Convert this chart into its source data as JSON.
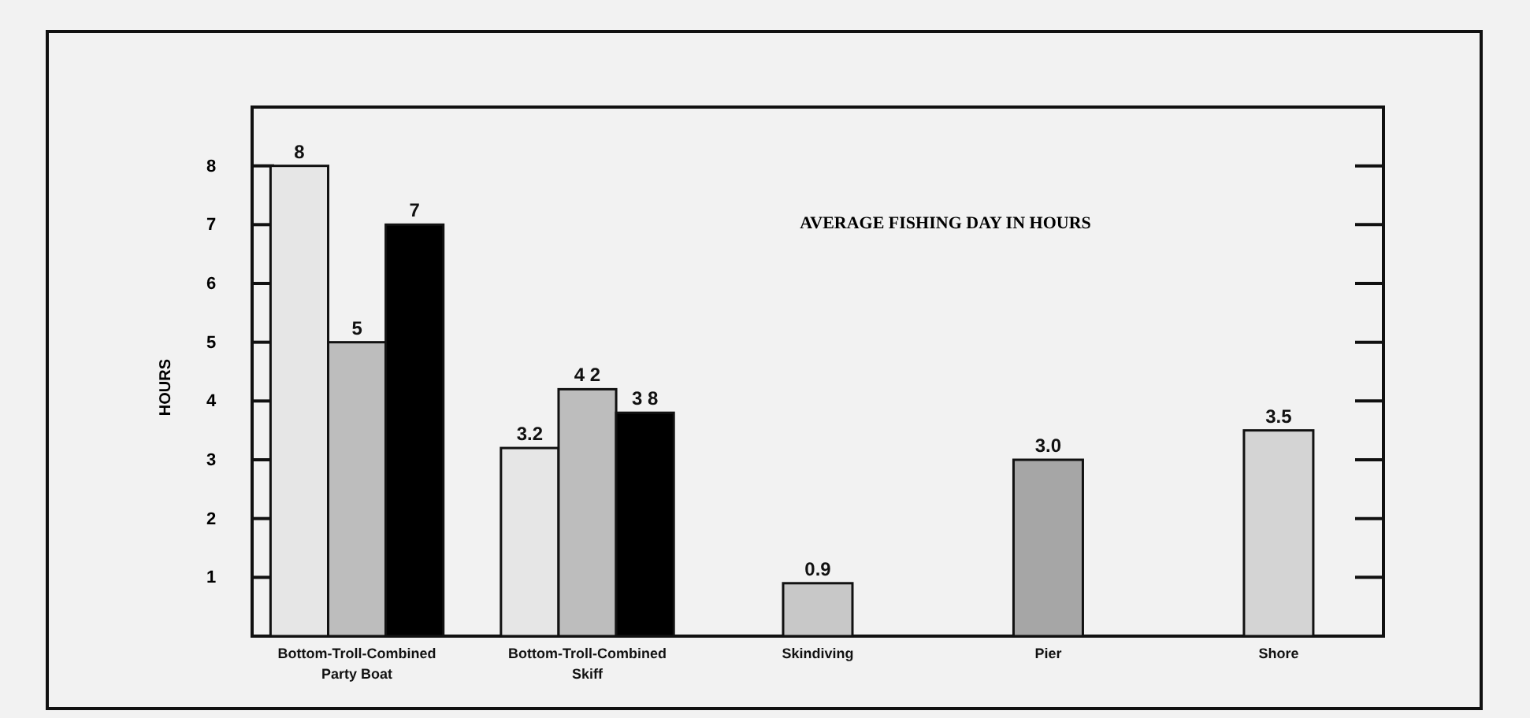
{
  "chart_data": {
    "type": "bar",
    "title": "AVERAGE FISHING DAY IN HOURS",
    "ylabel": "HOURS",
    "categories": [
      "Bottom-Troll-Combined\nParty Boat",
      "Bottom-Troll-Combined\nSkiff",
      "Skindiving",
      "Pier",
      "Shore"
    ],
    "series": [
      {
        "color": "#e6e6e6",
        "values": [
          8,
          3.2,
          null,
          null,
          null
        ]
      },
      {
        "color": "#bdbdbd",
        "values": [
          5,
          4.2,
          null,
          null,
          null
        ]
      },
      {
        "color": "#000000",
        "values": [
          7,
          3.8,
          null,
          null,
          null
        ]
      },
      {
        "colors": [
          null,
          null,
          "#c8c8c8",
          "#a6a6a6",
          "#d4d4d4"
        ],
        "values": [
          null,
          null,
          0.9,
          3.0,
          3.5
        ]
      }
    ],
    "value_labels": [
      [
        "8",
        "3.2",
        null,
        null,
        null
      ],
      [
        "5",
        "4 2",
        null,
        null,
        null
      ],
      [
        "7",
        "3 8",
        null,
        null,
        null
      ],
      [
        null,
        null,
        "0.9",
        "3.0",
        "3.5"
      ]
    ],
    "ylim": [
      0,
      9
    ],
    "yticks": [
      1,
      2,
      3,
      4,
      5,
      6,
      7,
      8
    ]
  }
}
